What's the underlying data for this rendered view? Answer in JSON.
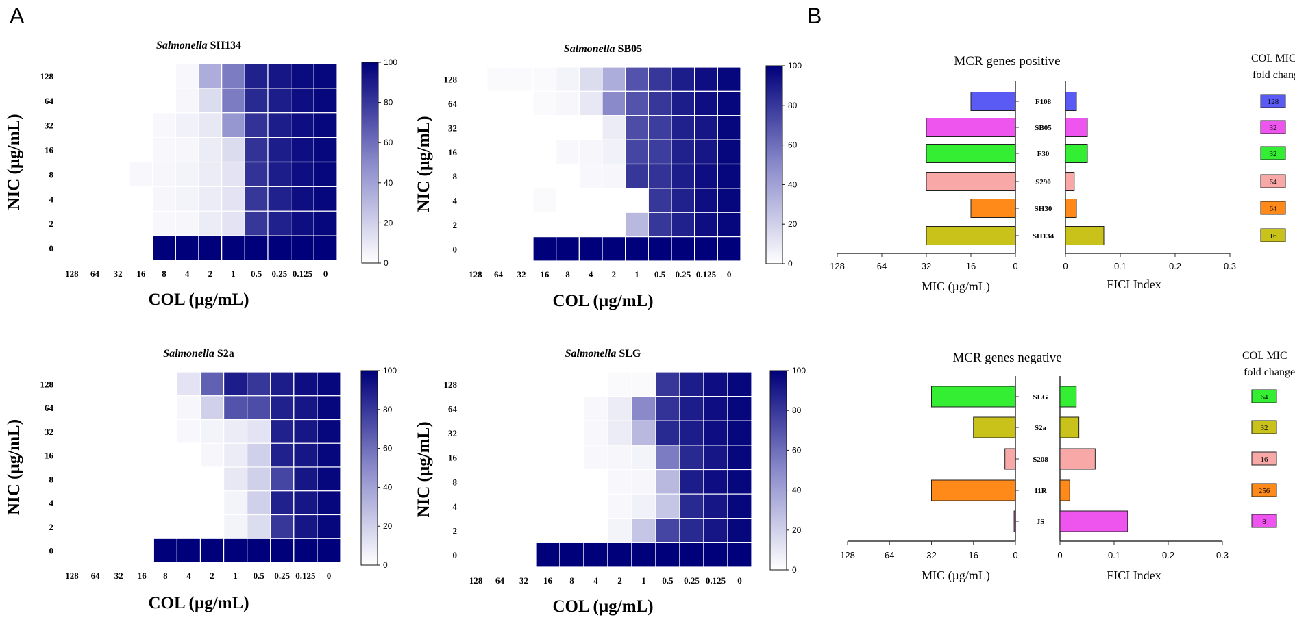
{
  "colors": {
    "cell_low": "#ffffff",
    "cell_high": "#00007a",
    "grid": "#ffffff",
    "axis": "#333333"
  },
  "panel_a": {
    "letter": "A",
    "x_label": "COL (µg/mL)",
    "y_label": "NIC (µg/mL)",
    "colorbar_ticks": [
      "0",
      "20",
      "40",
      "60",
      "80",
      "100"
    ]
  },
  "panel_b": {
    "letter": "B",
    "legend_title_line1": "COL MIC",
    "legend_title_line2": "fold change"
  },
  "chart_data": [
    {
      "type": "heatmap",
      "title_italic": "Salmonella",
      "title_strain": "SH134",
      "x": [
        "128",
        "64",
        "32",
        "16",
        "8",
        "4",
        "2",
        "1",
        "0.5",
        "0.25",
        "0.125",
        "0"
      ],
      "y": [
        "128",
        "64",
        "32",
        "16",
        "8",
        "4",
        "2",
        "0"
      ],
      "range": [
        0,
        100
      ],
      "values": [
        [
          0,
          0,
          0,
          0,
          0,
          3,
          35,
          55,
          88,
          92,
          96,
          98
        ],
        [
          0,
          0,
          0,
          0,
          0,
          4,
          15,
          55,
          85,
          90,
          95,
          98
        ],
        [
          0,
          0,
          0,
          0,
          3,
          6,
          10,
          45,
          82,
          90,
          95,
          98
        ],
        [
          0,
          0,
          0,
          0,
          3,
          4,
          8,
          15,
          82,
          90,
          95,
          98
        ],
        [
          0,
          0,
          0,
          3,
          4,
          5,
          8,
          12,
          82,
          90,
          95,
          98
        ],
        [
          0,
          0,
          0,
          0,
          4,
          5,
          8,
          12,
          80,
          88,
          95,
          98
        ],
        [
          0,
          0,
          0,
          0,
          3,
          4,
          8,
          12,
          80,
          88,
          95,
          98
        ],
        [
          0,
          0,
          0,
          0,
          100,
          100,
          100,
          100,
          100,
          100,
          100,
          100
        ]
      ]
    },
    {
      "type": "heatmap",
      "title_italic": "Salmonella",
      "title_strain": "SB05",
      "x": [
        "128",
        "64",
        "32",
        "16",
        "8",
        "4",
        "2",
        "1",
        "0.5",
        "0.25",
        "0.125",
        "0"
      ],
      "y": [
        "128",
        "64",
        "32",
        "16",
        "8",
        "4",
        "2",
        "0"
      ],
      "range": [
        0,
        100
      ],
      "values": [
        [
          0,
          2,
          2,
          2,
          5,
          15,
          35,
          70,
          80,
          90,
          95,
          98
        ],
        [
          0,
          0,
          0,
          2,
          4,
          10,
          50,
          70,
          80,
          90,
          95,
          98
        ],
        [
          0,
          0,
          0,
          0,
          0,
          0,
          8,
          72,
          78,
          88,
          92,
          98
        ],
        [
          0,
          0,
          0,
          0,
          3,
          4,
          6,
          75,
          78,
          88,
          92,
          98
        ],
        [
          0,
          0,
          0,
          0,
          0,
          3,
          4,
          80,
          82,
          90,
          95,
          98
        ],
        [
          0,
          0,
          0,
          2,
          0,
          0,
          0,
          0,
          80,
          88,
          95,
          98
        ],
        [
          0,
          0,
          0,
          0,
          0,
          0,
          0,
          30,
          80,
          88,
          95,
          98
        ],
        [
          0,
          0,
          0,
          100,
          100,
          100,
          100,
          100,
          100,
          100,
          100,
          100
        ]
      ]
    },
    {
      "type": "heatmap",
      "title_italic": "Salmonella",
      "title_strain": "S2a",
      "x": [
        "128",
        "64",
        "32",
        "16",
        "8",
        "4",
        "2",
        "1",
        "0.5",
        "0.25",
        "0.125",
        "0"
      ],
      "y": [
        "128",
        "64",
        "32",
        "16",
        "8",
        "4",
        "2",
        "0"
      ],
      "range": [
        0,
        100
      ],
      "values": [
        [
          0,
          0,
          0,
          0,
          0,
          12,
          65,
          90,
          80,
          90,
          95,
          98
        ],
        [
          0,
          0,
          0,
          0,
          0,
          4,
          20,
          70,
          72,
          88,
          92,
          98
        ],
        [
          0,
          0,
          0,
          0,
          0,
          3,
          5,
          8,
          12,
          88,
          92,
          98
        ],
        [
          0,
          0,
          0,
          0,
          0,
          0,
          4,
          8,
          20,
          88,
          92,
          98
        ],
        [
          0,
          0,
          0,
          0,
          0,
          0,
          0,
          10,
          20,
          75,
          92,
          98
        ],
        [
          0,
          0,
          0,
          0,
          0,
          0,
          0,
          5,
          20,
          88,
          92,
          98
        ],
        [
          0,
          0,
          0,
          0,
          0,
          0,
          0,
          5,
          15,
          80,
          92,
          98
        ],
        [
          0,
          0,
          0,
          0,
          100,
          100,
          100,
          100,
          100,
          100,
          100,
          100
        ]
      ]
    },
    {
      "type": "heatmap",
      "title_italic": "Salmonella",
      "title_strain": "SLG",
      "x": [
        "128",
        "64",
        "32",
        "16",
        "8",
        "4",
        "2",
        "1",
        "0.5",
        "0.25",
        "0.125",
        "0"
      ],
      "y": [
        "128",
        "64",
        "32",
        "16",
        "8",
        "4",
        "2",
        "0"
      ],
      "range": [
        0,
        100
      ],
      "values": [
        [
          0,
          0,
          0,
          0,
          0,
          0,
          2,
          2,
          80,
          90,
          95,
          98
        ],
        [
          0,
          0,
          0,
          0,
          0,
          3,
          8,
          50,
          82,
          90,
          95,
          98
        ],
        [
          0,
          0,
          0,
          0,
          0,
          3,
          8,
          30,
          85,
          90,
          95,
          98
        ],
        [
          0,
          0,
          0,
          0,
          0,
          3,
          4,
          5,
          55,
          85,
          92,
          98
        ],
        [
          0,
          0,
          0,
          0,
          0,
          0,
          3,
          4,
          30,
          90,
          95,
          98
        ],
        [
          0,
          0,
          0,
          0,
          0,
          0,
          3,
          6,
          25,
          85,
          92,
          98
        ],
        [
          0,
          0,
          0,
          0,
          0,
          0,
          5,
          25,
          75,
          85,
          92,
          98
        ],
        [
          0,
          0,
          0,
          100,
          100,
          100,
          100,
          100,
          100,
          100,
          100,
          100
        ]
      ]
    },
    {
      "type": "bar",
      "title": "MCR genes positive",
      "categories": [
        "F108",
        "SB05",
        "F30",
        "S290",
        "SH30",
        "SH134"
      ],
      "colors": [
        "#5a5af5",
        "#ee55ee",
        "#33ee33",
        "#f9a8a8",
        "#ff8a1a",
        "#c8c21a"
      ],
      "mic": {
        "values": [
          16,
          32,
          32,
          32,
          16,
          32
        ],
        "label": "MIC (µg/mL)",
        "ticks": [
          "128",
          "64",
          "32",
          "16",
          "0"
        ]
      },
      "fici": {
        "values": [
          0.02,
          0.04,
          0.04,
          0.016,
          0.02,
          0.07
        ],
        "label": "FICI Index",
        "ticks": [
          "0",
          "0.1",
          "0.2",
          "0.3"
        ],
        "max": 0.3
      },
      "fold_change": [
        "128",
        "32",
        "32",
        "64",
        "64",
        "16"
      ]
    },
    {
      "type": "bar",
      "title": "MCR genes negative",
      "categories": [
        "SLG",
        "S2a",
        "S208",
        "11R",
        "JS"
      ],
      "colors": [
        "#33ee33",
        "#c8c21a",
        "#f9a8a8",
        "#ff8a1a",
        "#ee55ee"
      ],
      "mic": {
        "values": [
          32,
          16,
          4,
          32,
          0.5
        ],
        "label": "MIC (µg/mL)",
        "ticks": [
          "128",
          "64",
          "32",
          "16",
          "0"
        ]
      },
      "fici": {
        "values": [
          0.03,
          0.035,
          0.065,
          0.018,
          0.125
        ],
        "label": "FICI Index",
        "ticks": [
          "0",
          "0.1",
          "0.2",
          "0.3"
        ],
        "max": 0.3
      },
      "fold_change": [
        "64",
        "32",
        "16",
        "256",
        "8"
      ]
    }
  ]
}
